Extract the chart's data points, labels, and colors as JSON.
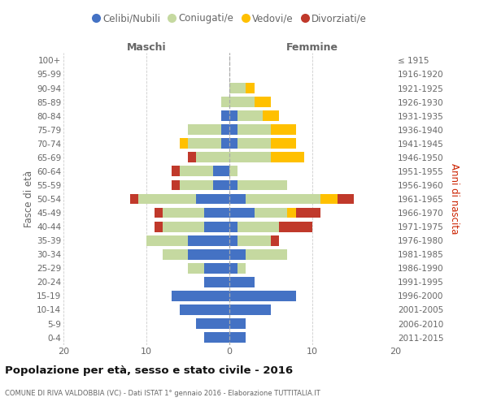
{
  "age_groups": [
    "0-4",
    "5-9",
    "10-14",
    "15-19",
    "20-24",
    "25-29",
    "30-34",
    "35-39",
    "40-44",
    "45-49",
    "50-54",
    "55-59",
    "60-64",
    "65-69",
    "70-74",
    "75-79",
    "80-84",
    "85-89",
    "90-94",
    "95-99",
    "100+"
  ],
  "birth_years": [
    "2011-2015",
    "2006-2010",
    "2001-2005",
    "1996-2000",
    "1991-1995",
    "1986-1990",
    "1981-1985",
    "1976-1980",
    "1971-1975",
    "1966-1970",
    "1961-1965",
    "1956-1960",
    "1951-1955",
    "1946-1950",
    "1941-1945",
    "1936-1940",
    "1931-1935",
    "1926-1930",
    "1921-1925",
    "1916-1920",
    "≤ 1915"
  ],
  "colors": {
    "celibi": "#4472c4",
    "coniugati": "#c5d9a0",
    "vedovi": "#ffc000",
    "divorziati": "#c0392b"
  },
  "maschi": {
    "celibi": [
      3,
      4,
      6,
      7,
      3,
      3,
      5,
      5,
      3,
      3,
      4,
      2,
      2,
      0,
      1,
      1,
      1,
      0,
      0,
      0,
      0
    ],
    "coniugati": [
      0,
      0,
      0,
      0,
      0,
      2,
      3,
      5,
      5,
      5,
      7,
      4,
      4,
      4,
      4,
      4,
      0,
      1,
      0,
      0,
      0
    ],
    "vedovi": [
      0,
      0,
      0,
      0,
      0,
      0,
      0,
      0,
      0,
      0,
      0,
      0,
      0,
      0,
      1,
      0,
      0,
      0,
      0,
      0,
      0
    ],
    "divorziati": [
      0,
      0,
      0,
      0,
      0,
      0,
      0,
      0,
      1,
      1,
      1,
      1,
      1,
      1,
      0,
      0,
      0,
      0,
      0,
      0,
      0
    ]
  },
  "femmine": {
    "celibi": [
      2,
      2,
      5,
      8,
      3,
      1,
      2,
      1,
      1,
      3,
      2,
      1,
      0,
      0,
      1,
      1,
      1,
      0,
      0,
      0,
      0
    ],
    "coniugati": [
      0,
      0,
      0,
      0,
      0,
      1,
      5,
      4,
      5,
      4,
      9,
      6,
      1,
      5,
      4,
      4,
      3,
      3,
      2,
      0,
      0
    ],
    "vedovi": [
      0,
      0,
      0,
      0,
      0,
      0,
      0,
      0,
      0,
      1,
      2,
      0,
      0,
      4,
      3,
      3,
      2,
      2,
      1,
      0,
      0
    ],
    "divorziati": [
      0,
      0,
      0,
      0,
      0,
      0,
      0,
      1,
      4,
      3,
      2,
      0,
      0,
      0,
      0,
      0,
      0,
      0,
      0,
      0,
      0
    ]
  },
  "title": "Popolazione per età, sesso e stato civile - 2016",
  "subtitle": "COMUNE DI RIVA VALDOBBIA (VC) - Dati ISTAT 1° gennaio 2016 - Elaborazione TUTTITALIA.IT",
  "label_maschi": "Maschi",
  "label_femmine": "Femmine",
  "ylabel_left": "Fasce di età",
  "ylabel_right": "Anni di nascita",
  "xlim": 20,
  "xticks": [
    -20,
    -10,
    0,
    10,
    20
  ],
  "xtick_labels": [
    "20",
    "10",
    "0",
    "10",
    "20"
  ],
  "legend_labels": [
    "Celibi/Nubili",
    "Coniugati/e",
    "Vedovi/e",
    "Divorziati/e"
  ],
  "background_color": "#ffffff",
  "grid_color": "#cccccc",
  "text_color": "#666666",
  "title_color": "#111111",
  "right_label_color": "#cc2200",
  "center_line_color": "#aaaaaa",
  "bar_height": 0.75
}
